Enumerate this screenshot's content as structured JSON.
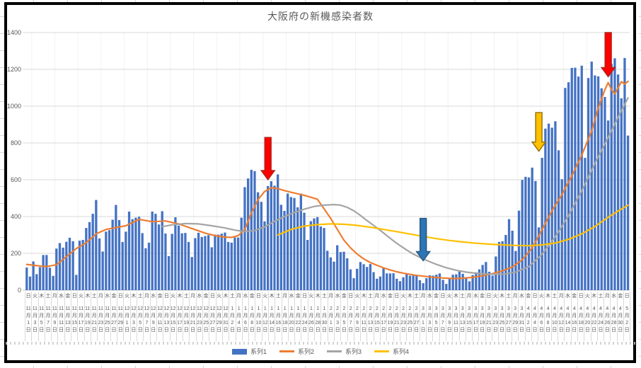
{
  "title": "大阪府の新機感染者数",
  "y_axis": {
    "ticks": [
      0,
      200,
      400,
      600,
      800,
      1000,
      1200,
      1400
    ]
  },
  "legend": {
    "items": [
      {
        "label": "系列1",
        "color": "#4472C4",
        "type": "bar"
      },
      {
        "label": "系列2",
        "color": "#ED7D31",
        "type": "line"
      },
      {
        "label": "系列3",
        "color": "#A5A5A5",
        "type": "line"
      },
      {
        "label": "系列4",
        "color": "#FFC000",
        "type": "line"
      }
    ]
  },
  "chart_data": {
    "type": "bar",
    "title": "大阪府の新機感染者数",
    "ylim": [
      0,
      1400
    ],
    "grid": "horizontal",
    "legend_position": "bottom",
    "x_start": "11月1日(日)",
    "x_end": "5月2日(日)",
    "x_labels": [
      [
        "日",
        11,
        1
      ],
      [
        "火",
        11,
        3
      ],
      [
        "木",
        11,
        5
      ],
      [
        "土",
        11,
        7
      ],
      [
        "月",
        11,
        9
      ],
      [
        "水",
        11,
        11
      ],
      [
        "金",
        11,
        13
      ],
      [
        "日",
        11,
        15
      ],
      [
        "火",
        11,
        17
      ],
      [
        "木",
        11,
        19
      ],
      [
        "土",
        11,
        21
      ],
      [
        "月",
        11,
        23
      ],
      [
        "水",
        11,
        25
      ],
      [
        "金",
        11,
        27
      ],
      [
        "日",
        11,
        29
      ],
      [
        "火",
        12,
        1
      ],
      [
        "木",
        12,
        3
      ],
      [
        "土",
        12,
        5
      ],
      [
        "月",
        12,
        7
      ],
      [
        "水",
        12,
        9
      ],
      [
        "金",
        12,
        11
      ],
      [
        "日",
        12,
        13
      ],
      [
        "火",
        12,
        15
      ],
      [
        "木",
        12,
        17
      ],
      [
        "土",
        12,
        19
      ],
      [
        "月",
        12,
        21
      ],
      [
        "水",
        12,
        23
      ],
      [
        "金",
        12,
        25
      ],
      [
        "日",
        12,
        27
      ],
      [
        "火",
        12,
        29
      ],
      [
        "木",
        12,
        31
      ],
      [
        "土",
        1,
        2
      ],
      [
        "月",
        1,
        4
      ],
      [
        "水",
        1,
        6
      ],
      [
        "金",
        1,
        8
      ],
      [
        "日",
        1,
        10
      ],
      [
        "火",
        1,
        12
      ],
      [
        "木",
        1,
        14
      ],
      [
        "土",
        1,
        16
      ],
      [
        "月",
        1,
        18
      ],
      [
        "水",
        1,
        20
      ],
      [
        "金",
        1,
        22
      ],
      [
        "日",
        1,
        24
      ],
      [
        "火",
        1,
        26
      ],
      [
        "木",
        1,
        28
      ],
      [
        "土",
        1,
        30
      ],
      [
        "月",
        2,
        1
      ],
      [
        "水",
        2,
        3
      ],
      [
        "金",
        2,
        5
      ],
      [
        "日",
        2,
        7
      ],
      [
        "火",
        2,
        9
      ],
      [
        "木",
        2,
        11
      ],
      [
        "土",
        2,
        13
      ],
      [
        "月",
        2,
        15
      ],
      [
        "水",
        2,
        17
      ],
      [
        "金",
        2,
        19
      ],
      [
        "日",
        2,
        21
      ],
      [
        "火",
        2,
        23
      ],
      [
        "木",
        2,
        25
      ],
      [
        "土",
        2,
        27
      ],
      [
        "月",
        3,
        1
      ],
      [
        "水",
        3,
        3
      ],
      [
        "金",
        3,
        5
      ],
      [
        "日",
        3,
        7
      ],
      [
        "火",
        3,
        9
      ],
      [
        "木",
        3,
        11
      ],
      [
        "土",
        3,
        13
      ],
      [
        "月",
        3,
        15
      ],
      [
        "水",
        3,
        17
      ],
      [
        "金",
        3,
        19
      ],
      [
        "日",
        3,
        21
      ],
      [
        "火",
        3,
        23
      ],
      [
        "木",
        3,
        25
      ],
      [
        "土",
        3,
        27
      ],
      [
        "月",
        3,
        29
      ],
      [
        "水",
        3,
        31
      ],
      [
        "金",
        4,
        2
      ],
      [
        "日",
        4,
        4
      ],
      [
        "火",
        4,
        6
      ],
      [
        "木",
        4,
        8
      ],
      [
        "土",
        4,
        10
      ],
      [
        "月",
        4,
        12
      ],
      [
        "水",
        4,
        14
      ],
      [
        "金",
        4,
        16
      ],
      [
        "日",
        4,
        18
      ],
      [
        "火",
        4,
        20
      ],
      [
        "木",
        4,
        22
      ],
      [
        "土",
        4,
        24
      ],
      [
        "月",
        4,
        26
      ],
      [
        "水",
        4,
        28
      ],
      [
        "金",
        4,
        30
      ],
      [
        "日",
        5,
        2
      ]
    ],
    "series": [
      {
        "name": "系列1",
        "type": "bar",
        "color": "#4472C4",
        "daily_values": [
          123,
          74,
          156,
          87,
          125,
          191,
          191,
          122,
          78,
          226,
          256,
          231,
          263,
          285,
          266,
          83,
          269,
          273,
          338,
          370,
          415,
          490,
          281,
          210,
          318,
          326,
          383,
          463,
          381,
          262,
          318,
          427,
          386,
          394,
          399,
          310,
          228,
          258,
          427,
          415,
          357,
          429,
          308,
          185,
          306,
          396,
          351,
          309,
          311,
          262,
          180,
          283,
          312,
          289,
          294,
          299,
          233,
          302,
          302,
          307,
          313,
          262,
          258,
          286,
          286,
          394,
          560,
          607,
          654,
          647,
          532,
          480,
          374,
          566,
          592,
          568,
          629,
          464,
          431,
          525,
          506,
          501,
          450,
          525,
          421,
          273,
          375,
          390,
          397,
          346,
          338,
          214,
          178,
          155,
          244,
          207,
          209,
          173,
          113,
          65,
          116,
          153,
          141,
          126,
          142,
          98,
          62,
          74,
          119,
          91,
          91,
          92,
          62,
          49,
          70,
          88,
          79,
          80,
          84,
          54,
          38,
          65,
          81,
          79,
          84,
          91,
          56,
          34,
          62,
          84,
          86,
          101,
          89,
          71,
          48,
          82,
          97,
          113,
          137,
          153,
          100,
          79,
          183,
          262,
          266,
          300,
          386,
          323,
          213,
          432,
          599,
          616,
          613,
          666,
          593,
          341,
          719,
          878,
          905,
          883,
          918,
          760,
          603,
          1099,
          1130,
          1208,
          1209,
          1161,
          1220,
          719,
          1153,
          1242,
          1167,
          1162,
          1097,
          1050,
          922,
          1230,
          1260,
          1172,
          1043,
          1262,
          840
        ]
      },
      {
        "name": "系列2",
        "type": "line",
        "color": "#ED7D31",
        "points": [
          [
            0,
            140
          ],
          [
            3,
            133
          ],
          [
            6,
            128
          ],
          [
            9,
            138
          ],
          [
            12,
            182
          ],
          [
            15,
            226
          ],
          [
            18,
            258
          ],
          [
            21,
            306
          ],
          [
            24,
            330
          ],
          [
            27,
            340
          ],
          [
            30,
            350
          ],
          [
            34,
            385
          ],
          [
            38,
            372
          ],
          [
            42,
            376
          ],
          [
            46,
            360
          ],
          [
            50,
            335
          ],
          [
            54,
            310
          ],
          [
            57,
            296
          ],
          [
            60,
            288
          ],
          [
            62,
            287
          ],
          [
            64,
            296
          ],
          [
            66,
            330
          ],
          [
            68,
            420
          ],
          [
            70,
            492
          ],
          [
            72,
            536
          ],
          [
            74,
            556
          ],
          [
            76,
            552
          ],
          [
            78,
            541
          ],
          [
            80,
            532
          ],
          [
            82,
            524
          ],
          [
            84,
            515
          ],
          [
            86,
            505
          ],
          [
            88,
            494
          ],
          [
            90,
            442
          ],
          [
            92,
            390
          ],
          [
            94,
            330
          ],
          [
            96,
            272
          ],
          [
            98,
            230
          ],
          [
            100,
            196
          ],
          [
            102,
            170
          ],
          [
            104,
            150
          ],
          [
            106,
            135
          ],
          [
            108,
            121
          ],
          [
            110,
            110
          ],
          [
            112,
            100
          ],
          [
            114,
            92
          ],
          [
            116,
            86
          ],
          [
            118,
            80
          ],
          [
            120,
            76
          ],
          [
            123,
            70
          ],
          [
            126,
            66
          ],
          [
            129,
            63
          ],
          [
            132,
            65
          ],
          [
            135,
            70
          ],
          [
            138,
            78
          ],
          [
            141,
            90
          ],
          [
            144,
            105
          ],
          [
            147,
            126
          ],
          [
            150,
            165
          ],
          [
            153,
            230
          ],
          [
            156,
            330
          ],
          [
            159,
            432
          ],
          [
            162,
            520
          ],
          [
            165,
            622
          ],
          [
            168,
            734
          ],
          [
            171,
            866
          ],
          [
            173,
            990
          ],
          [
            175,
            1090
          ],
          [
            176,
            1128
          ],
          [
            177,
            1090
          ],
          [
            178,
            1066
          ],
          [
            179,
            1100
          ],
          [
            180,
            1133
          ],
          [
            181,
            1120
          ],
          [
            182,
            1135
          ]
        ]
      },
      {
        "name": "系列3",
        "type": "line",
        "color": "#A5A5A5",
        "points": [
          [
            41,
            345
          ],
          [
            44,
            355
          ],
          [
            48,
            362
          ],
          [
            52,
            360
          ],
          [
            56,
            350
          ],
          [
            60,
            338
          ],
          [
            63,
            326
          ],
          [
            66,
            318
          ],
          [
            69,
            324
          ],
          [
            72,
            344
          ],
          [
            75,
            374
          ],
          [
            78,
            400
          ],
          [
            81,
            422
          ],
          [
            84,
            440
          ],
          [
            87,
            455
          ],
          [
            90,
            462
          ],
          [
            93,
            465
          ],
          [
            95,
            462
          ],
          [
            97,
            450
          ],
          [
            99,
            431
          ],
          [
            101,
            406
          ],
          [
            103,
            378
          ],
          [
            105,
            352
          ],
          [
            107,
            325
          ],
          [
            109,
            296
          ],
          [
            111,
            268
          ],
          [
            113,
            242
          ],
          [
            115,
            218
          ],
          [
            117,
            196
          ],
          [
            119,
            178
          ],
          [
            121,
            162
          ],
          [
            124,
            140
          ],
          [
            127,
            122
          ],
          [
            130,
            108
          ],
          [
            133,
            98
          ],
          [
            136,
            92
          ],
          [
            139,
            88
          ],
          [
            142,
            86
          ],
          [
            145,
            88
          ],
          [
            148,
            98
          ],
          [
            152,
            128
          ],
          [
            156,
            196
          ],
          [
            160,
            290
          ],
          [
            164,
            405
          ],
          [
            168,
            540
          ],
          [
            172,
            690
          ],
          [
            176,
            830
          ],
          [
            179,
            940
          ],
          [
            182,
            1045
          ]
        ]
      },
      {
        "name": "系列4",
        "type": "line",
        "color": "#FFC000",
        "points": [
          [
            76,
            300
          ],
          [
            80,
            330
          ],
          [
            84,
            348
          ],
          [
            88,
            356
          ],
          [
            92,
            360
          ],
          [
            96,
            358
          ],
          [
            100,
            352
          ],
          [
            104,
            342
          ],
          [
            108,
            330
          ],
          [
            112,
            318
          ],
          [
            116,
            305
          ],
          [
            120,
            292
          ],
          [
            124,
            280
          ],
          [
            128,
            270
          ],
          [
            132,
            262
          ],
          [
            136,
            255
          ],
          [
            140,
            250
          ],
          [
            144,
            246
          ],
          [
            148,
            243
          ],
          [
            152,
            242
          ],
          [
            156,
            246
          ],
          [
            160,
            256
          ],
          [
            164,
            276
          ],
          [
            168,
            306
          ],
          [
            172,
            346
          ],
          [
            176,
            396
          ],
          [
            179,
            430
          ],
          [
            182,
            462
          ]
        ]
      }
    ],
    "annotations": [
      {
        "name": "red-down-arrow-january-peak",
        "day": 73,
        "tail_value": 830,
        "tip_value": 600,
        "fill": "#FF0000",
        "stroke": "#B02418"
      },
      {
        "name": "blue-down-arrow-early-march",
        "day": 120,
        "tail_value": 390,
        "tip_value": 160,
        "fill": "#2E75B6",
        "stroke": "#24567F"
      },
      {
        "name": "yellow-down-arrow-early-april",
        "day": 155,
        "tail_value": 965,
        "tip_value": 755,
        "fill": "#FFC000",
        "stroke": "#8F7000"
      },
      {
        "name": "red-down-arrow-late-april",
        "day": 176,
        "tail_value": 1400,
        "tip_value": 1160,
        "fill": "#FF0000",
        "stroke": "#B02418"
      }
    ]
  }
}
